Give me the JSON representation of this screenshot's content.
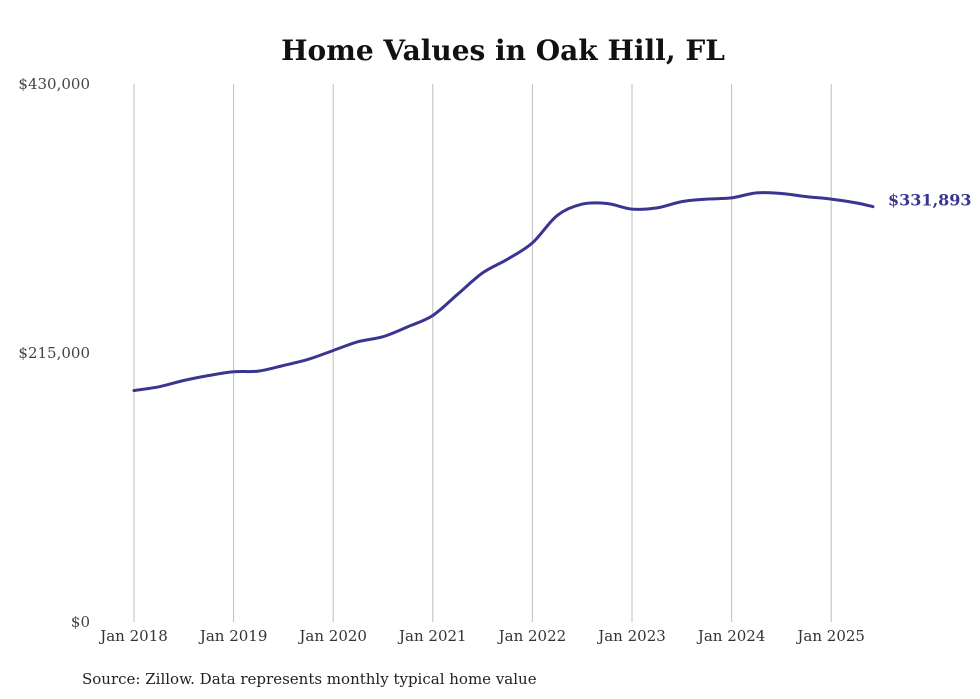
{
  "chart_data": {
    "type": "line",
    "title": "Home Values in Oak Hill, FL",
    "source": "Source: Zillow. Data represents monthly typical home value",
    "xlabel": "",
    "ylabel": "",
    "ylim": [
      0,
      430000
    ],
    "y_ticks": [
      {
        "value": 0,
        "label": "$0"
      },
      {
        "value": 215000,
        "label": "$215,000"
      },
      {
        "value": 430000,
        "label": "$430,000"
      }
    ],
    "x_ticks": [
      {
        "value": 2018,
        "label": "Jan 2018"
      },
      {
        "value": 2019,
        "label": "Jan 2019"
      },
      {
        "value": 2020,
        "label": "Jan 2020"
      },
      {
        "value": 2021,
        "label": "Jan 2021"
      },
      {
        "value": 2022,
        "label": "Jan 2022"
      },
      {
        "value": 2023,
        "label": "Jan 2023"
      },
      {
        "value": 2024,
        "label": "Jan 2024"
      },
      {
        "value": 2025,
        "label": "Jan 2025"
      }
    ],
    "xlim": [
      2018,
      2025.5
    ],
    "grid": "vertical",
    "line_color": "#3b3592",
    "end_label": "$331,893",
    "series": [
      {
        "x": [
          2018.0,
          2018.25,
          2018.5,
          2018.75,
          2019.0,
          2019.25,
          2019.5,
          2019.75,
          2020.0,
          2020.25,
          2020.5,
          2020.75,
          2021.0,
          2021.25,
          2021.5,
          2021.75,
          2022.0,
          2022.25,
          2022.5,
          2022.75,
          2023.0,
          2023.25,
          2023.5,
          2023.75,
          2024.0,
          2024.25,
          2024.5,
          2024.75,
          2025.0,
          2025.25,
          2025.42
        ],
        "y": [
          185000,
          188000,
          193000,
          197000,
          200000,
          200500,
          205000,
          210000,
          217000,
          224000,
          228000,
          236000,
          245000,
          262000,
          279000,
          290000,
          303000,
          325000,
          334000,
          334500,
          330000,
          331000,
          336000,
          338000,
          339000,
          343000,
          342500,
          340000,
          338000,
          335000,
          331893
        ]
      }
    ]
  }
}
